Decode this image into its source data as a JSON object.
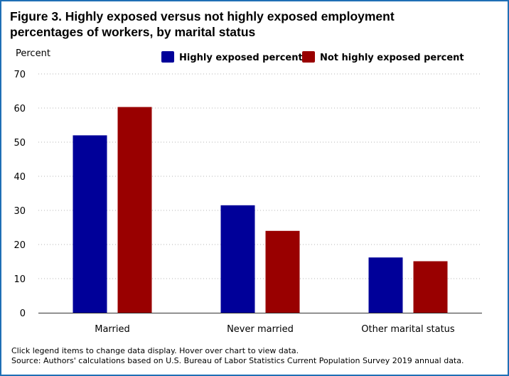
{
  "title": "Figure 3. Highly exposed versus not highly exposed employment percentages of workers, by marital status",
  "notes": {
    "interaction": "Click legend items to change data display. Hover over chart to view data.",
    "source": "Source: Authors' calculations based on U.S. Bureau of Labor Statistics Current Population Survey 2019 annual data."
  },
  "colors": {
    "frame": "#1f6fb5",
    "highly": "#000099",
    "not_highly": "#990000"
  },
  "chart_data": {
    "type": "bar",
    "title": "Figure 3. Highly exposed versus not highly exposed employment percentages of workers, by marital status",
    "xlabel": "",
    "ylabel": "Percent",
    "ylim": [
      0,
      70
    ],
    "yticks": [
      0,
      10,
      20,
      30,
      40,
      50,
      60,
      70
    ],
    "grid": "horizontal dotted",
    "legend_position": "top",
    "categories": [
      "Married",
      "Never married",
      "Other marital status"
    ],
    "series": [
      {
        "name": "Highly exposed percent",
        "color": "#000099",
        "values": [
          52,
          31.5,
          16.2
        ]
      },
      {
        "name": "Not highly exposed percent",
        "color": "#990000",
        "values": [
          60.3,
          24,
          15.1
        ]
      }
    ]
  }
}
